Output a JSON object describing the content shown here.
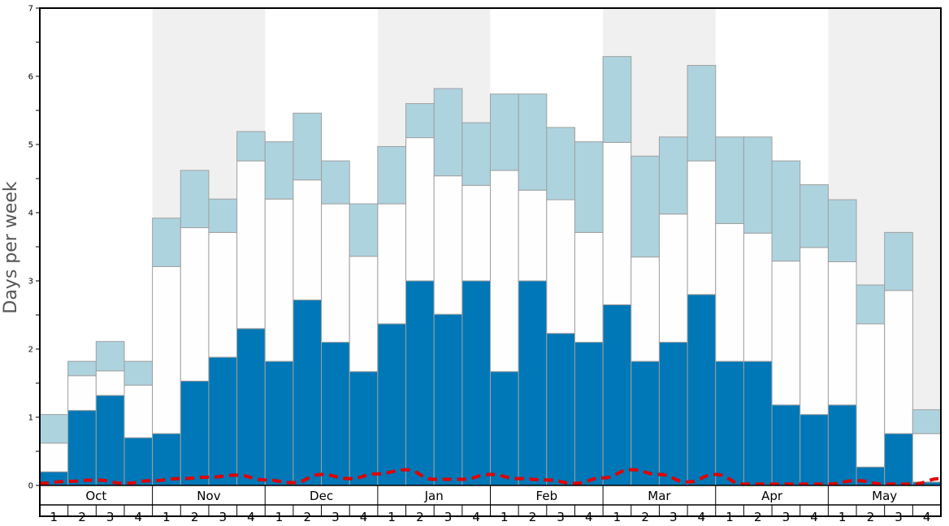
{
  "chart_data": {
    "type": "bar",
    "ylabel": "Days per week",
    "ylim": [
      0,
      7
    ],
    "yticks": [
      "0",
      "1",
      "2",
      "3",
      "4",
      "5",
      "6",
      "7"
    ],
    "months": [
      "Oct",
      "Nov",
      "Dec",
      "Jan",
      "Feb",
      "Mar",
      "Apr",
      "May"
    ],
    "weeks": [
      "1",
      "2",
      "3",
      "4"
    ],
    "colors": {
      "bottom_series": "#0077b6",
      "middle_series": "#fefefe",
      "top_series": "#add3df",
      "trend_line": "#e00000",
      "alt_month_band": "#f0f0f0",
      "bar_border": "#a0a0a0"
    },
    "series": [
      {
        "values": [
          0.2,
          1.1,
          1.32,
          0.7,
          0.76,
          1.53,
          1.88,
          2.3,
          1.82,
          2.72,
          2.1,
          1.67,
          2.37,
          3.0,
          2.51,
          3.0,
          1.67,
          3.0,
          2.23,
          2.1,
          2.65,
          1.82,
          2.1,
          2.8,
          1.82,
          1.82,
          1.18,
          1.04,
          1.18,
          0.27,
          0.76,
          0.05
        ]
      },
      {
        "values": [
          0.42,
          0.51,
          0.36,
          0.77,
          2.45,
          2.25,
          1.83,
          2.46,
          2.38,
          1.76,
          2.03,
          1.69,
          1.76,
          2.1,
          2.03,
          1.4,
          2.95,
          1.33,
          1.96,
          1.61,
          2.38,
          1.53,
          1.88,
          1.96,
          2.02,
          1.88,
          2.11,
          2.45,
          2.1,
          2.1,
          2.1,
          0.71
        ]
      },
      {
        "values": [
          0.42,
          0.21,
          0.43,
          0.35,
          0.71,
          0.84,
          0.49,
          0.43,
          0.84,
          0.98,
          0.63,
          0.77,
          0.84,
          0.5,
          1.28,
          0.92,
          1.12,
          1.41,
          1.06,
          1.33,
          1.26,
          1.48,
          1.13,
          1.4,
          1.27,
          1.41,
          1.47,
          0.92,
          0.91,
          0.57,
          0.85,
          0.35
        ]
      }
    ],
    "trend": [
      0.03,
      0.06,
      0.08,
      0.03,
      0.07,
      0.1,
      0.12,
      0.15,
      0.08,
      0.04,
      0.16,
      0.1,
      0.17,
      0.23,
      0.09,
      0.09,
      0.16,
      0.1,
      0.08,
      0.03,
      0.11,
      0.23,
      0.16,
      0.05,
      0.16,
      0.02,
      0.02,
      0.02,
      0.02,
      0.07,
      0.02,
      0.02,
      0.1
    ],
    "alt_month_band": true,
    "legend": "none"
  }
}
